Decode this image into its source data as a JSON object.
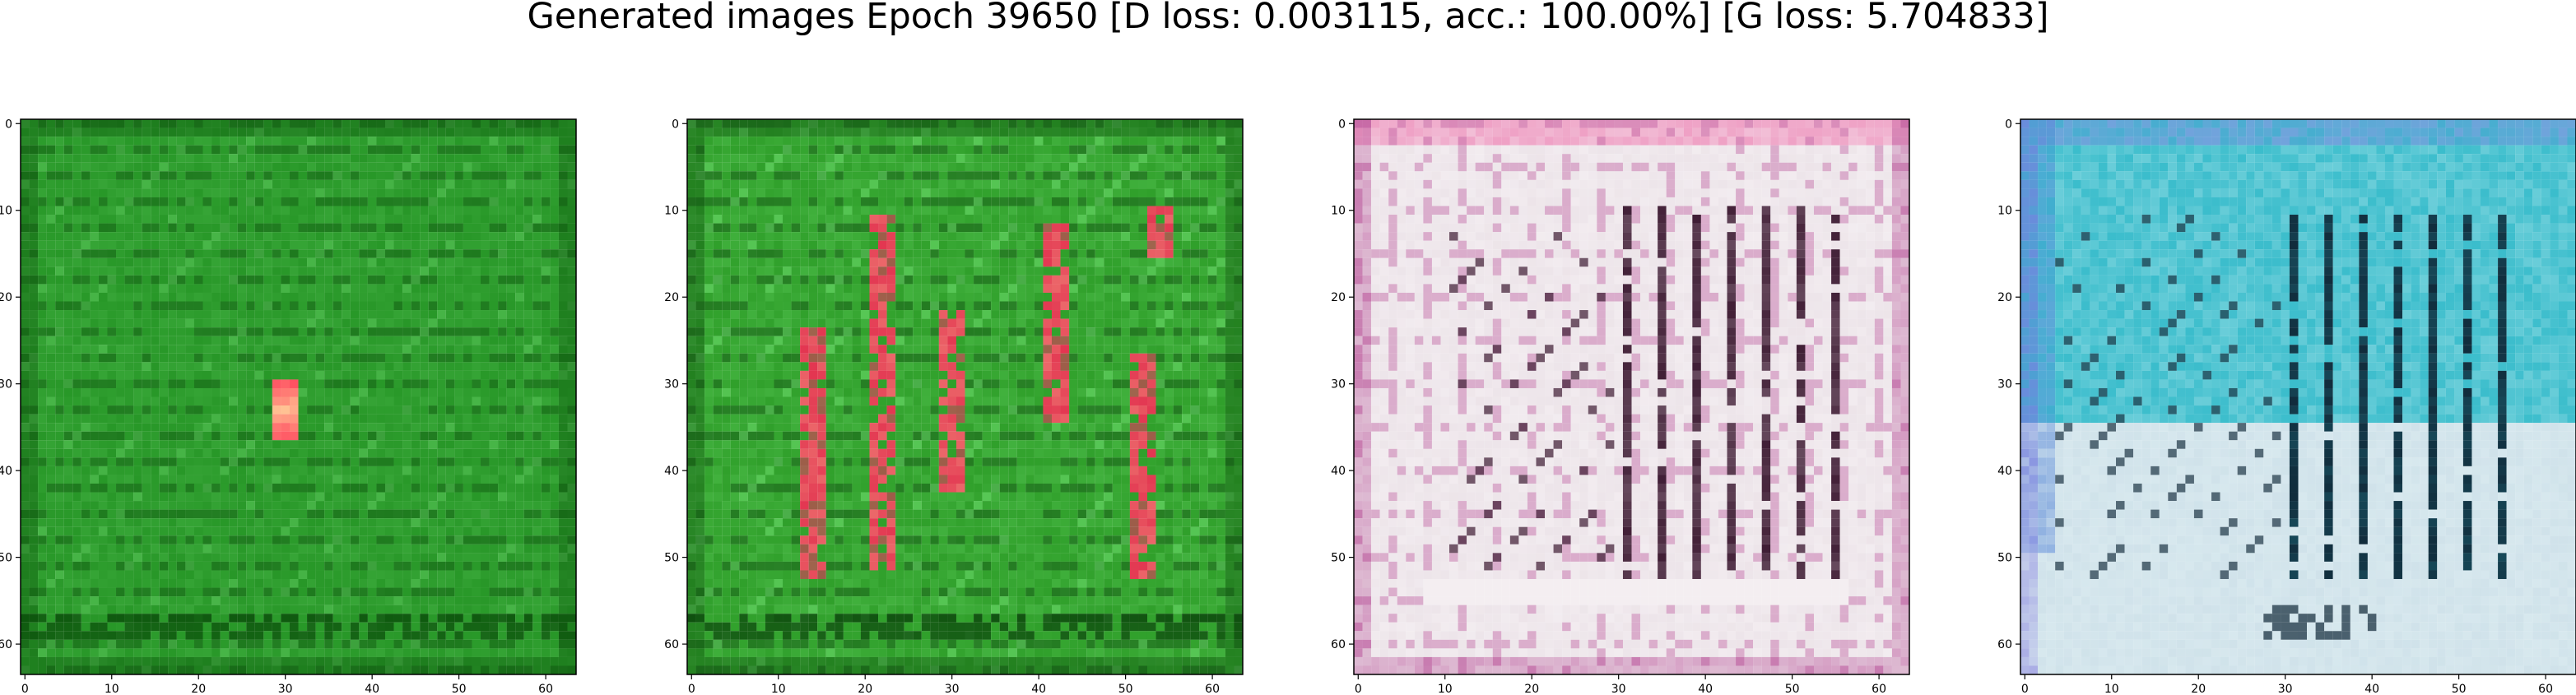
{
  "figure": {
    "title": "Generated images Epoch 39650 [D loss: 0.003115, acc.: 100.00%] [G loss: 5.704833]"
  },
  "axis": {
    "x_ticks": [
      "0",
      "10",
      "20",
      "30",
      "40",
      "50",
      "60"
    ],
    "y_ticks": [
      "0",
      "10",
      "20",
      "30",
      "40",
      "50",
      "60"
    ],
    "x_range": [
      -0.5,
      63.5
    ],
    "y_range": [
      -0.5,
      63.5
    ]
  },
  "panels": [
    {
      "name": "generated-image-1",
      "description_colors": {
        "base": "#1f8f1f",
        "dark": "#0a4f0a",
        "light": "#59c659",
        "accent": "#ff3355",
        "hot": "#ffe0a0"
      },
      "motifs": [
        "green-texture",
        "small-red-spot-center"
      ]
    },
    {
      "name": "generated-image-2",
      "description_colors": {
        "base": "#25951f",
        "dark": "#0b470b",
        "light": "#6cdc6c",
        "accent": "#e0284a",
        "hot": "#ffd4a0"
      },
      "motifs": [
        "green-texture",
        "red-vertical-streaks"
      ]
    },
    {
      "name": "generated-image-3",
      "description_colors": {
        "base": "#e7dde3",
        "dark": "#3b1830",
        "light": "#f7f2f5",
        "accent": "#b03c8c",
        "hot": "#ffffff"
      },
      "motifs": [
        "pale-texture",
        "dark-vertical-bars"
      ]
    },
    {
      "name": "generated-image-4",
      "description_colors": {
        "base": "#2db8c8",
        "dark": "#102838",
        "light": "#d7e8ee",
        "accent": "#7b6adf",
        "hot": "#f5e8f0"
      },
      "motifs": [
        "cyan-upper",
        "pale-lower",
        "dark-vertical-bars"
      ]
    }
  ]
}
